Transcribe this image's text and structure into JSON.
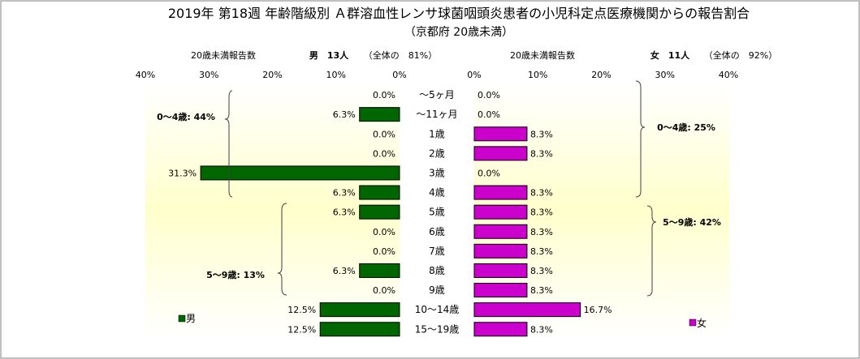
{
  "chart_data": {
    "type": "bar",
    "title": "2019年 第18週 年齢階級別 Ａ群溶血性レンサ球菌咽頭炎患者の小児科定点医療機関からの報告割合",
    "subtitle": "（京都府 20歳未満）",
    "categories": [
      "～5ヶ月",
      "～11ヶ月",
      "1歳",
      "2歳",
      "3歳",
      "4歳",
      "5歳",
      "6歳",
      "7歳",
      "8歳",
      "9歳",
      "10～14歳",
      "15～19歳"
    ],
    "series": [
      {
        "name": "男",
        "values": [
          0.0,
          6.3,
          0.0,
          0.0,
          31.3,
          6.3,
          6.3,
          0.0,
          0.0,
          6.3,
          0.0,
          12.5,
          12.5
        ],
        "labels": [
          "0.0%",
          "6.3%",
          "0.0%",
          "0.0%",
          "31.3%",
          "6.3%",
          "6.3%",
          "0.0%",
          "0.0%",
          "6.3%",
          "0.0%",
          "12.5%",
          "12.5%"
        ],
        "color": "#006600",
        "header_caption": "20歳未満報告数",
        "header_count": "男　13人",
        "header_share": "（全体の　81%）",
        "ticks": [
          "40%",
          "30%",
          "20%",
          "10%",
          "0%"
        ],
        "xlim": [
          0,
          40
        ],
        "groups": [
          "0～4歳: 44%",
          "5～9歳: 13%"
        ]
      },
      {
        "name": "女",
        "values": [
          0.0,
          0.0,
          8.3,
          8.3,
          0.0,
          8.3,
          8.3,
          8.3,
          8.3,
          8.3,
          8.3,
          16.7,
          8.3
        ],
        "labels": [
          "0.0%",
          "0.0%",
          "8.3%",
          "8.3%",
          "0.0%",
          "8.3%",
          "8.3%",
          "8.3%",
          "8.3%",
          "8.3%",
          "8.3%",
          "16.7%",
          "8.3%"
        ],
        "color": "#cc00cc",
        "header_caption": "20歳未満報告数",
        "header_count": "女　11人",
        "header_share": "（全体の　92%）",
        "ticks": [
          "0%",
          "10%",
          "20%",
          "30%",
          "40%"
        ],
        "xlim": [
          0,
          40
        ],
        "groups": [
          "0～4歳: 25%",
          "5～9歳: 42%"
        ]
      }
    ],
    "colors": {
      "plot_background_center": "#ffffcc",
      "plot_background_edge": "#ffffff"
    }
  }
}
